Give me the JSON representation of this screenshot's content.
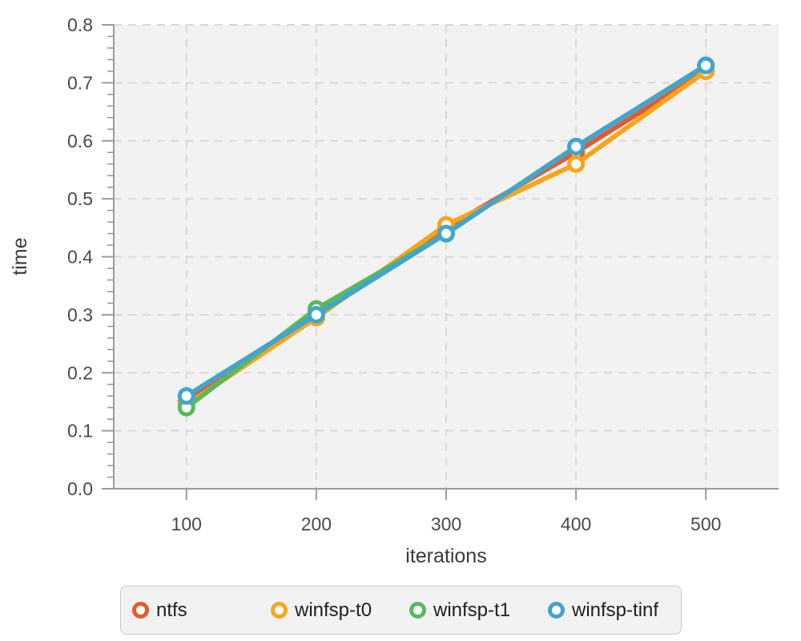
{
  "chart_data": {
    "type": "line",
    "title": "",
    "xlabel": "iterations",
    "ylabel": "time",
    "x": [
      100,
      200,
      300,
      400,
      500
    ],
    "xticks": [
      100,
      200,
      300,
      400,
      500
    ],
    "yticks": [
      0.0,
      0.1,
      0.2,
      0.3,
      0.4,
      0.5,
      0.6,
      0.7,
      0.8
    ],
    "y_minor_step": 0.02,
    "xlim": [
      44,
      556
    ],
    "ylim": [
      0,
      0.8
    ],
    "grid": true,
    "legend_position": "bottom",
    "series": [
      {
        "name": "ntfs",
        "color": "#E4592E",
        "values": [
          0.15,
          0.3,
          0.45,
          0.58,
          0.72
        ]
      },
      {
        "name": "winfsp-t0",
        "color": "#F7A51C",
        "values": [
          0.145,
          0.295,
          0.455,
          0.56,
          0.72
        ]
      },
      {
        "name": "winfsp-t1",
        "color": "#5CB85C",
        "values": [
          0.14,
          0.31,
          0.44,
          0.59,
          0.73
        ]
      },
      {
        "name": "winfsp-tinf",
        "color": "#43A5CB",
        "values": [
          0.16,
          0.3,
          0.44,
          0.59,
          0.73
        ]
      }
    ]
  },
  "style": {
    "plot_bg": "#f2f2f2",
    "grid_color": "#d9d9d9",
    "axis_color": "#9b9b9b",
    "tick_label_color": "#4a4a4a",
    "axis_label_color": "#3a3a3a",
    "legend_bg": "#f2f2f2",
    "legend_border": "#c9c9c9",
    "legend_text": "#1f1f1f",
    "line_width": 6,
    "marker_radius": 8.5,
    "marker_stroke": 5
  }
}
